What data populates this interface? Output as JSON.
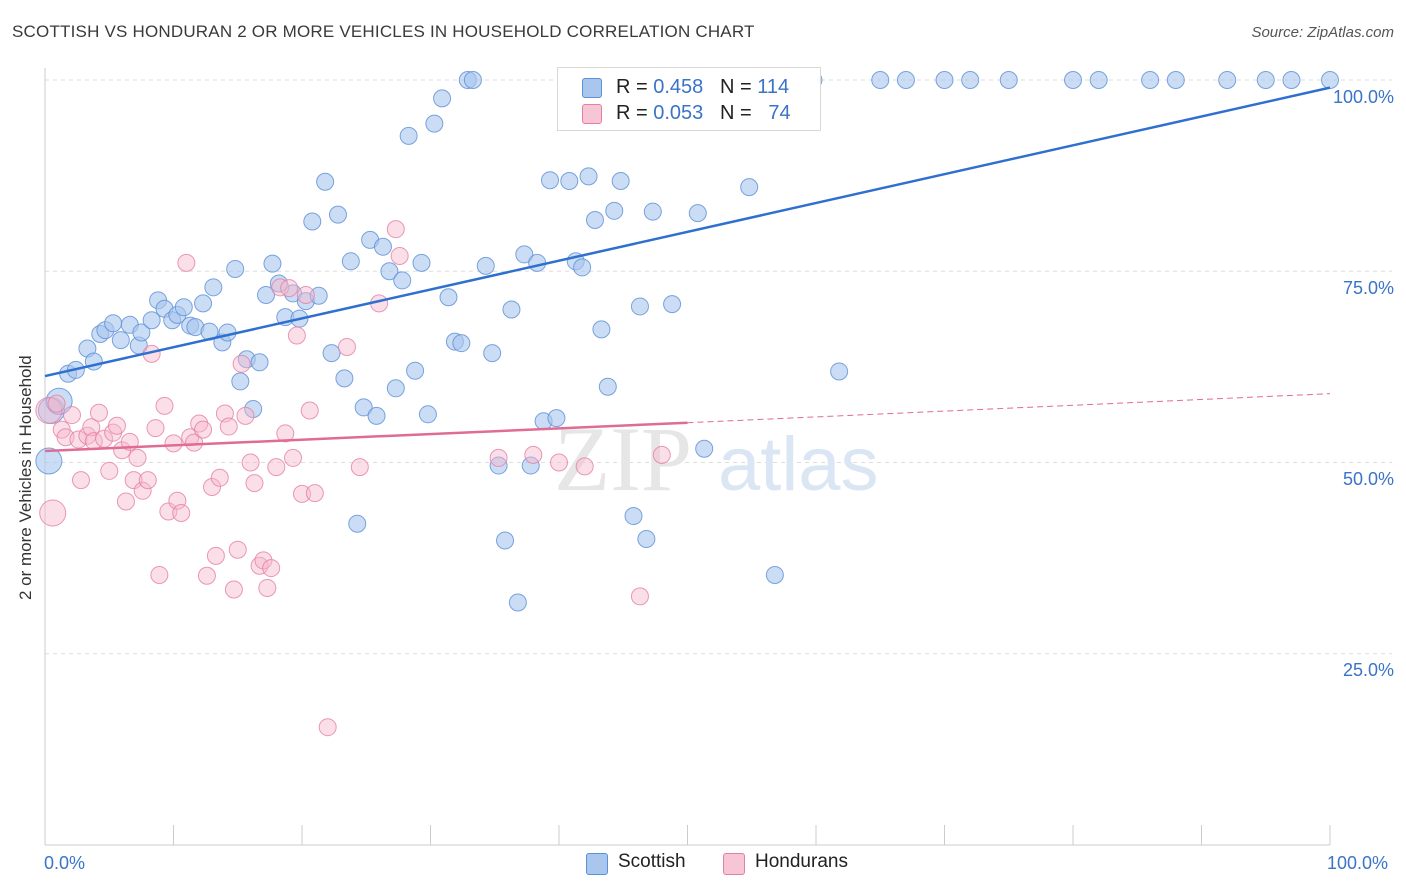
{
  "title": "SCOTTISH VS HONDURAN 2 OR MORE VEHICLES IN HOUSEHOLD CORRELATION CHART",
  "source": "Source: ZipAtlas.com",
  "watermark": {
    "zip": "ZIP",
    "atlas": "atlas"
  },
  "colors": {
    "scottish_fill": "#a9c6ee",
    "scottish_stroke": "#5b8fd6",
    "scottish_line": "#2f6fd0",
    "hondurans_fill": "#f6b8cc",
    "hondurans_stroke": "#e57fa2",
    "hondurans_line": "#e06b95",
    "tick_text": "#3a73c8",
    "grid": "#dddddd"
  },
  "legend": {
    "scottish": {
      "r_label": "R =",
      "r_value": "0.458",
      "n_label": "N =",
      "n_value": "114"
    },
    "hondurans": {
      "r_label": "R =",
      "r_value": "0.053",
      "n_label": "N =",
      "n_value": "74"
    }
  },
  "bottom_legend": {
    "scottish": "Scottish",
    "hondurans": "Hondurans"
  },
  "chart_data": {
    "type": "scatter",
    "title": "SCOTTISH VS HONDURAN 2 OR MORE VEHICLES IN HOUSEHOLD CORRELATION CHART",
    "xlabel": "",
    "ylabel": "2 or more Vehicles in Household",
    "xlim": [
      0,
      100
    ],
    "ylim": [
      0,
      104
    ],
    "x_ticks": [
      "0.0%",
      "100.0%"
    ],
    "y_ticks": [
      "25.0%",
      "50.0%",
      "75.0%",
      "100.0%"
    ],
    "y_tick_values": [
      25,
      50,
      75,
      100
    ],
    "grid": true,
    "series": [
      {
        "name": "Scottish",
        "trend": {
          "x": [
            0,
            100
          ],
          "y": [
            61.3,
            99.0
          ]
        },
        "points": [
          [
            0.3,
            50.2
          ],
          [
            0.5,
            56.8
          ],
          [
            1.1,
            58.0
          ],
          [
            1.8,
            61.6
          ],
          [
            2.4,
            62.1
          ],
          [
            3.3,
            64.9
          ],
          [
            3.8,
            63.2
          ],
          [
            4.3,
            66.8
          ],
          [
            4.7,
            67.3
          ],
          [
            5.3,
            68.2
          ],
          [
            5.9,
            66.0
          ],
          [
            6.6,
            68.0
          ],
          [
            7.3,
            65.3
          ],
          [
            7.5,
            67.0
          ],
          [
            8.3,
            68.6
          ],
          [
            8.8,
            71.2
          ],
          [
            9.3,
            70.1
          ],
          [
            9.9,
            68.6
          ],
          [
            10.3,
            69.3
          ],
          [
            10.8,
            70.3
          ],
          [
            11.3,
            67.9
          ],
          [
            11.7,
            67.7
          ],
          [
            12.3,
            70.8
          ],
          [
            12.8,
            67.1
          ],
          [
            13.1,
            72.9
          ],
          [
            13.8,
            65.7
          ],
          [
            14.2,
            67.0
          ],
          [
            14.8,
            75.3
          ],
          [
            15.2,
            60.6
          ],
          [
            15.7,
            63.5
          ],
          [
            16.2,
            57.0
          ],
          [
            16.7,
            63.1
          ],
          [
            17.2,
            71.9
          ],
          [
            17.7,
            76.0
          ],
          [
            18.2,
            73.4
          ],
          [
            18.7,
            69.0
          ],
          [
            19.3,
            72.1
          ],
          [
            19.8,
            68.8
          ],
          [
            20.3,
            71.1
          ],
          [
            20.8,
            81.5
          ],
          [
            21.3,
            71.8
          ],
          [
            21.8,
            86.7
          ],
          [
            22.3,
            64.3
          ],
          [
            22.8,
            82.4
          ],
          [
            23.3,
            61.0
          ],
          [
            23.8,
            76.3
          ],
          [
            24.3,
            42.0
          ],
          [
            24.8,
            57.2
          ],
          [
            25.3,
            79.1
          ],
          [
            25.8,
            56.1
          ],
          [
            26.3,
            78.2
          ],
          [
            26.8,
            75.0
          ],
          [
            27.3,
            59.7
          ],
          [
            27.8,
            73.8
          ],
          [
            28.3,
            92.7
          ],
          [
            28.8,
            62.0
          ],
          [
            29.3,
            76.1
          ],
          [
            29.8,
            56.3
          ],
          [
            30.3,
            94.3
          ],
          [
            30.9,
            97.6
          ],
          [
            31.4,
            71.6
          ],
          [
            31.9,
            65.8
          ],
          [
            32.4,
            65.6
          ],
          [
            32.9,
            100
          ],
          [
            33.3,
            100
          ],
          [
            34.3,
            75.7
          ],
          [
            34.8,
            64.3
          ],
          [
            35.3,
            49.6
          ],
          [
            35.8,
            39.8
          ],
          [
            36.3,
            70.0
          ],
          [
            36.8,
            31.7
          ],
          [
            37.3,
            77.2
          ],
          [
            37.8,
            49.6
          ],
          [
            38.3,
            76.1
          ],
          [
            38.8,
            55.4
          ],
          [
            39.3,
            86.9
          ],
          [
            39.8,
            55.8
          ],
          [
            40.8,
            86.8
          ],
          [
            41.3,
            76.3
          ],
          [
            41.8,
            75.5
          ],
          [
            42.3,
            87.4
          ],
          [
            42.8,
            81.7
          ],
          [
            43.3,
            67.4
          ],
          [
            43.8,
            59.9
          ],
          [
            44.3,
            82.9
          ],
          [
            44.8,
            86.8
          ],
          [
            45.8,
            43.0
          ],
          [
            46.3,
            70.4
          ],
          [
            46.8,
            40.0
          ],
          [
            47.3,
            82.8
          ],
          [
            48.8,
            70.7
          ],
          [
            50.3,
            100
          ],
          [
            50.8,
            82.6
          ],
          [
            51.3,
            51.8
          ],
          [
            52.3,
            100
          ],
          [
            53.3,
            100
          ],
          [
            54.8,
            86.0
          ],
          [
            55.8,
            100
          ],
          [
            56.8,
            35.3
          ],
          [
            59.8,
            100
          ],
          [
            61.8,
            61.9
          ],
          [
            65.0,
            100
          ],
          [
            67.0,
            100
          ],
          [
            70.0,
            100
          ],
          [
            72.0,
            100
          ],
          [
            75.0,
            100
          ],
          [
            80.0,
            100
          ],
          [
            82.0,
            100
          ],
          [
            86.0,
            100
          ],
          [
            88.0,
            100
          ],
          [
            92.0,
            100
          ],
          [
            95.0,
            100
          ],
          [
            97.0,
            100
          ],
          [
            100.0,
            100
          ]
        ]
      },
      {
        "name": "Hondurans",
        "trend": {
          "x": [
            0,
            50
          ],
          "y": [
            51.5,
            55.2
          ],
          "dashed_to": [
            100,
            59.0
          ]
        },
        "points": [
          [
            0.3,
            56.8
          ],
          [
            0.6,
            43.4
          ],
          [
            0.9,
            57.7
          ],
          [
            1.3,
            54.3
          ],
          [
            1.6,
            53.3
          ],
          [
            2.1,
            56.2
          ],
          [
            2.6,
            53.0
          ],
          [
            2.8,
            47.7
          ],
          [
            3.3,
            53.5
          ],
          [
            3.6,
            54.6
          ],
          [
            3.8,
            52.8
          ],
          [
            4.2,
            56.5
          ],
          [
            4.6,
            53.1
          ],
          [
            5.0,
            48.9
          ],
          [
            5.3,
            53.9
          ],
          [
            5.6,
            54.8
          ],
          [
            6.0,
            51.6
          ],
          [
            6.3,
            44.9
          ],
          [
            6.6,
            52.7
          ],
          [
            6.9,
            47.7
          ],
          [
            7.2,
            50.6
          ],
          [
            7.6,
            46.3
          ],
          [
            8.0,
            47.7
          ],
          [
            8.3,
            64.2
          ],
          [
            8.6,
            54.5
          ],
          [
            8.9,
            35.3
          ],
          [
            9.3,
            57.4
          ],
          [
            9.6,
            43.6
          ],
          [
            10.0,
            52.5
          ],
          [
            10.3,
            45.0
          ],
          [
            10.6,
            43.4
          ],
          [
            11.0,
            76.1
          ],
          [
            11.3,
            53.3
          ],
          [
            11.6,
            52.6
          ],
          [
            12.0,
            55.1
          ],
          [
            12.3,
            54.3
          ],
          [
            12.6,
            35.2
          ],
          [
            13.0,
            46.8
          ],
          [
            13.3,
            37.8
          ],
          [
            13.6,
            48.0
          ],
          [
            14.0,
            56.4
          ],
          [
            14.3,
            54.7
          ],
          [
            14.7,
            33.4
          ],
          [
            15.0,
            38.6
          ],
          [
            15.3,
            62.9
          ],
          [
            15.6,
            56.1
          ],
          [
            16.0,
            50.0
          ],
          [
            16.3,
            47.3
          ],
          [
            16.7,
            36.5
          ],
          [
            17.0,
            37.2
          ],
          [
            17.3,
            33.6
          ],
          [
            17.6,
            36.2
          ],
          [
            18.0,
            49.4
          ],
          [
            18.3,
            72.9
          ],
          [
            18.7,
            53.8
          ],
          [
            19.0,
            72.8
          ],
          [
            19.3,
            50.6
          ],
          [
            19.6,
            66.6
          ],
          [
            20.0,
            45.9
          ],
          [
            20.3,
            71.9
          ],
          [
            20.6,
            56.8
          ],
          [
            21.0,
            46.0
          ],
          [
            22.0,
            15.4
          ],
          [
            23.5,
            65.1
          ],
          [
            24.5,
            49.4
          ],
          [
            26.0,
            70.8
          ],
          [
            27.3,
            80.5
          ],
          [
            27.6,
            77.0
          ],
          [
            35.3,
            50.6
          ],
          [
            38.0,
            51.0
          ],
          [
            40.0,
            50.0
          ],
          [
            42.0,
            49.5
          ],
          [
            46.3,
            32.5
          ],
          [
            48.0,
            51.0
          ]
        ]
      }
    ]
  }
}
